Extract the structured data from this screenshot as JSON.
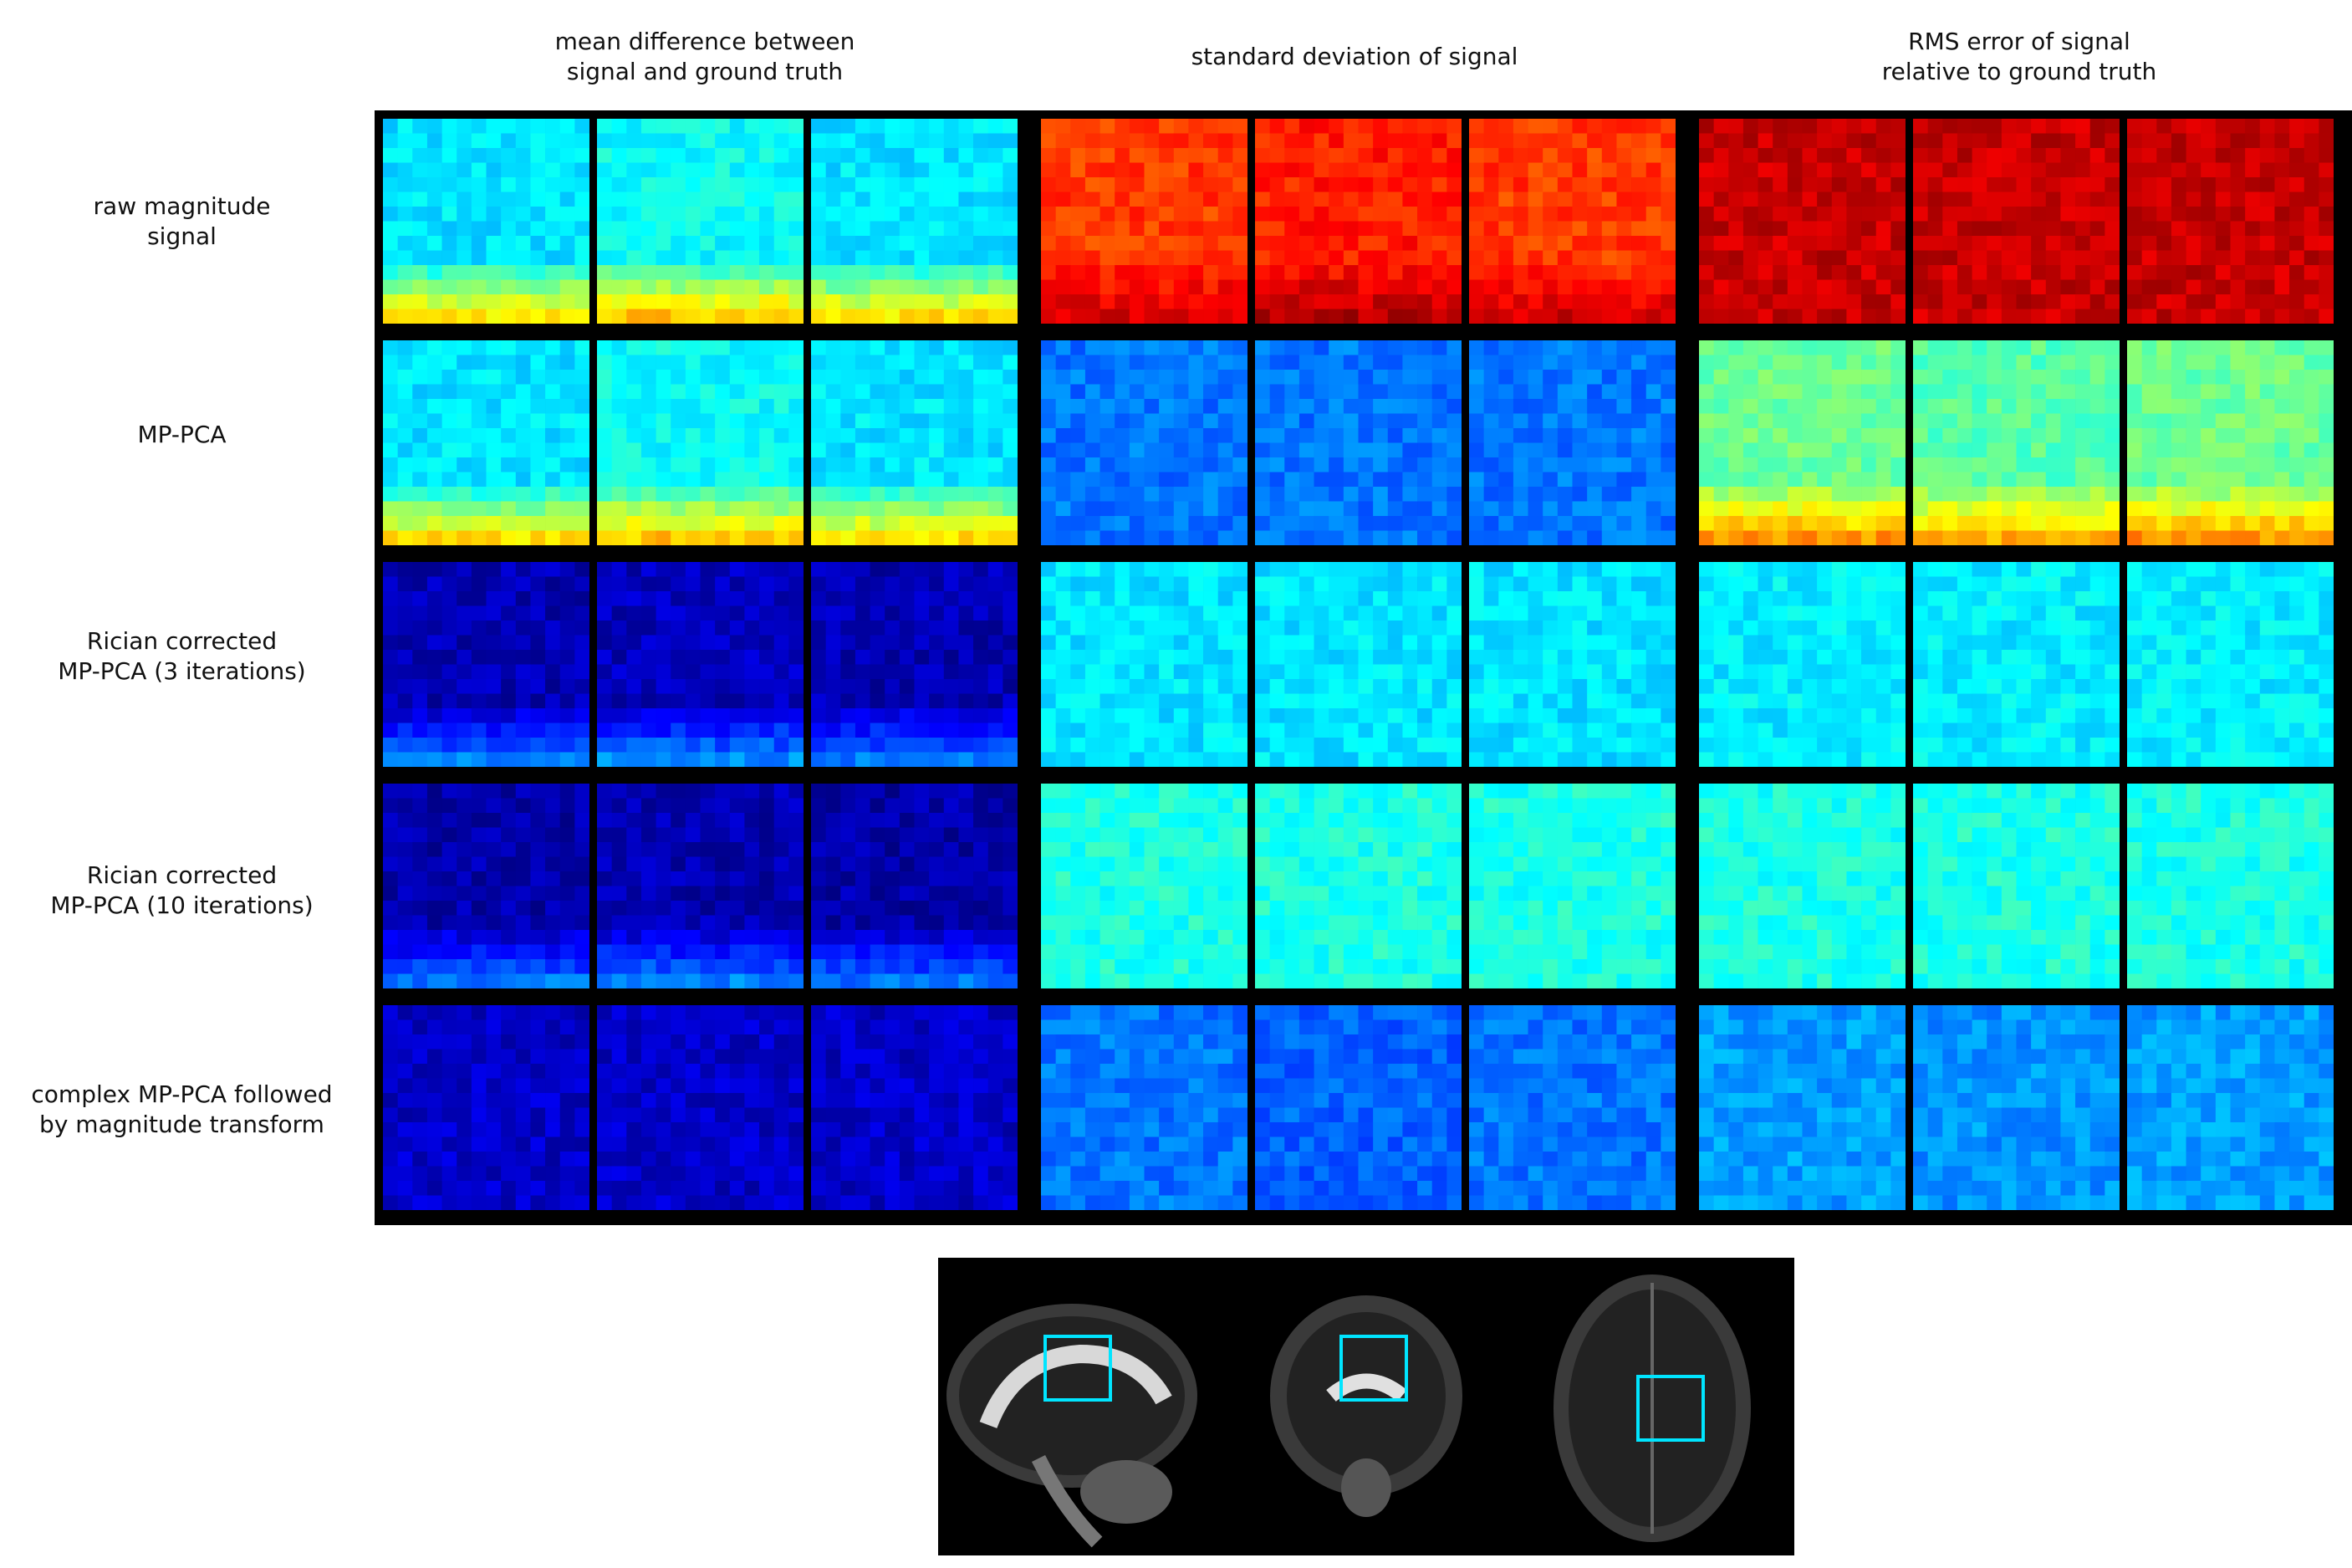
{
  "figure": {
    "column_headers": [
      "mean difference between\nsignal and ground truth",
      "standard deviation of signal",
      "RMS error of signal\nrelative to ground truth"
    ],
    "row_labels": [
      "raw magnitude\nsignal",
      "MP-PCA",
      "Rician corrected\nMP-PCA (3 iterations)",
      "Rician corrected\nMP-PCA (10 iterations)",
      "complex MP-PCA followed\nby magnitude transform"
    ],
    "colormap": "jet",
    "tile_levels": [
      [
        [
          0.35,
          0.38,
          0.35
        ],
        [
          0.82,
          0.85,
          0.82
        ],
        [
          0.93,
          0.93,
          0.93
        ]
      ],
      [
        [
          0.35,
          0.38,
          0.35
        ],
        [
          0.24,
          0.24,
          0.24
        ],
        [
          0.48,
          0.46,
          0.48
        ]
      ],
      [
        [
          0.05,
          0.06,
          0.05
        ],
        [
          0.35,
          0.35,
          0.35
        ],
        [
          0.36,
          0.36,
          0.36
        ]
      ],
      [
        [
          0.04,
          0.05,
          0.04
        ],
        [
          0.4,
          0.4,
          0.4
        ],
        [
          0.4,
          0.4,
          0.4
        ]
      ],
      [
        [
          0.07,
          0.07,
          0.07
        ],
        [
          0.24,
          0.22,
          0.24
        ],
        [
          0.28,
          0.27,
          0.28
        ]
      ]
    ],
    "roi_box_color": "#00e5ff"
  }
}
